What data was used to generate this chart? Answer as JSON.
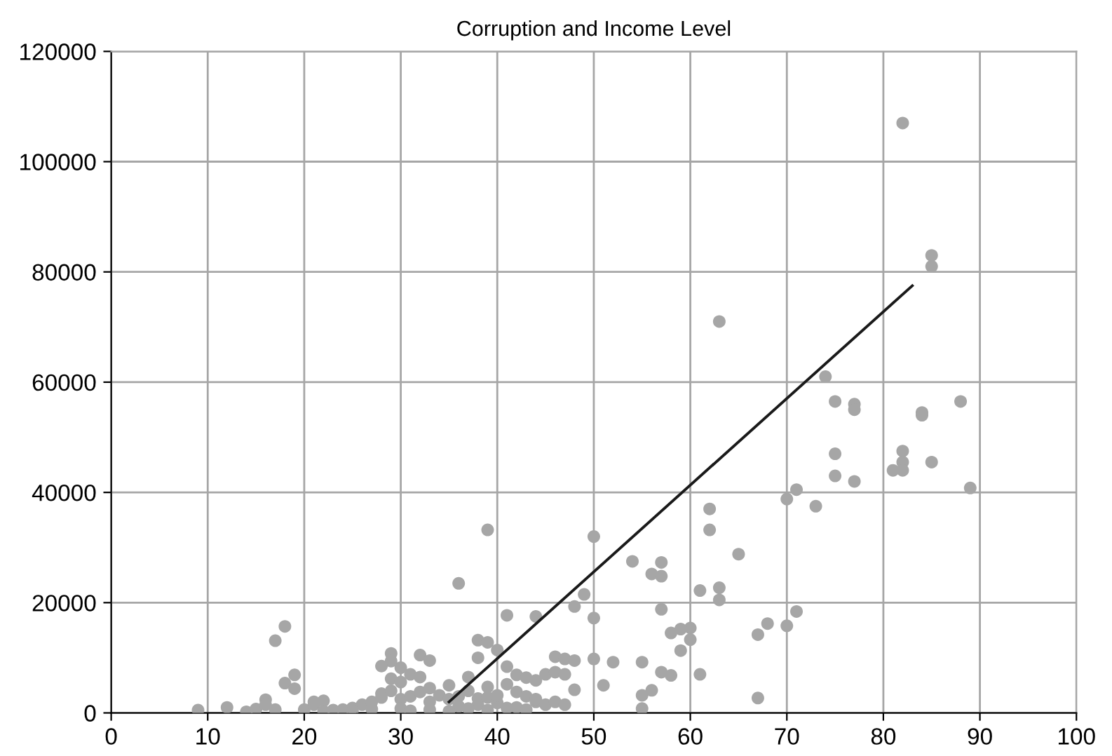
{
  "chart_data": {
    "type": "scatter",
    "title": "Corruption and Income Level",
    "xlim": [
      0,
      100
    ],
    "ylim": [
      0,
      120000
    ],
    "xticks": [
      0,
      10,
      20,
      30,
      40,
      50,
      60,
      70,
      80,
      90,
      100
    ],
    "yticks": [
      0,
      20000,
      40000,
      60000,
      80000,
      100000,
      120000
    ],
    "grid": true,
    "legend": false,
    "marker": "circle",
    "series": [
      {
        "color": "#a6a6a6",
        "x": [
          82,
          85,
          85,
          63,
          74,
          75,
          77,
          77,
          88,
          84,
          84,
          75,
          82,
          82,
          81,
          82,
          85,
          75,
          77,
          89,
          71,
          70,
          73,
          62,
          62,
          39,
          50,
          65,
          54,
          57,
          56,
          57,
          36,
          63,
          61,
          49,
          63,
          48,
          57,
          71,
          68,
          70,
          18,
          17,
          38,
          39,
          40,
          41,
          44,
          50,
          60,
          59,
          58,
          60,
          67,
          59,
          46,
          47,
          48,
          50,
          52,
          55,
          57,
          58,
          61,
          45,
          46,
          47,
          55,
          56,
          51,
          48,
          67,
          55,
          42,
          44,
          32,
          29,
          29,
          28,
          30,
          33,
          38,
          41,
          42,
          43,
          44,
          9,
          12,
          14,
          15,
          16,
          16,
          17,
          18,
          19,
          19,
          20,
          21,
          22,
          21,
          22,
          23,
          24,
          25,
          26,
          27,
          28,
          28,
          29,
          29,
          30,
          30,
          31,
          31,
          32,
          32,
          33,
          33,
          34,
          35,
          35,
          36,
          36,
          37,
          37,
          38,
          38,
          39,
          39,
          40,
          40,
          41,
          42,
          43,
          44,
          45,
          30,
          31,
          25,
          27,
          33,
          35,
          37,
          39,
          41,
          46,
          47,
          43
        ],
        "values": [
          107000,
          83000,
          81000,
          71000,
          61000,
          56500,
          56000,
          55000,
          56500,
          54500,
          54000,
          47000,
          47500,
          45500,
          44000,
          44000,
          45500,
          43000,
          42000,
          40800,
          40500,
          38800,
          37500,
          37000,
          33200,
          33200,
          32000,
          28800,
          27500,
          27300,
          25200,
          24800,
          23500,
          22700,
          22200,
          21500,
          20500,
          19300,
          18800,
          18400,
          16200,
          15800,
          15700,
          13100,
          13200,
          12800,
          11400,
          17700,
          17500,
          17200,
          15400,
          15200,
          14500,
          13300,
          14200,
          11300,
          10200,
          9800,
          9500,
          9800,
          9200,
          9200,
          7400,
          6800,
          7000,
          7000,
          7400,
          7000,
          3200,
          4100,
          5000,
          4200,
          2700,
          800,
          1000,
          2000,
          10500,
          10800,
          9400,
          8500,
          8200,
          9500,
          10000,
          8400,
          6900,
          6400,
          5900,
          500,
          1000,
          200,
          700,
          2400,
          1500,
          600,
          5400,
          6900,
          4400,
          600,
          1500,
          2200,
          2000,
          300,
          500,
          600,
          900,
          1500,
          2000,
          3500,
          2800,
          4000,
          6200,
          2500,
          5600,
          3000,
          7000,
          6500,
          3800,
          2000,
          4500,
          3200,
          5000,
          2500,
          1200,
          3000,
          4000,
          6500,
          2600,
          1500,
          4700,
          2800,
          1800,
          3200,
          5200,
          3800,
          3000,
          2500,
          1500,
          800,
          400,
          400,
          700,
          600,
          300,
          800,
          500,
          900,
          2000,
          1500,
          600
        ]
      },
      {
        "type": "line",
        "color": "#1a1a1a",
        "marker": "none",
        "x": [
          35,
          83
        ],
        "values": [
          2000,
          77500
        ]
      }
    ]
  }
}
